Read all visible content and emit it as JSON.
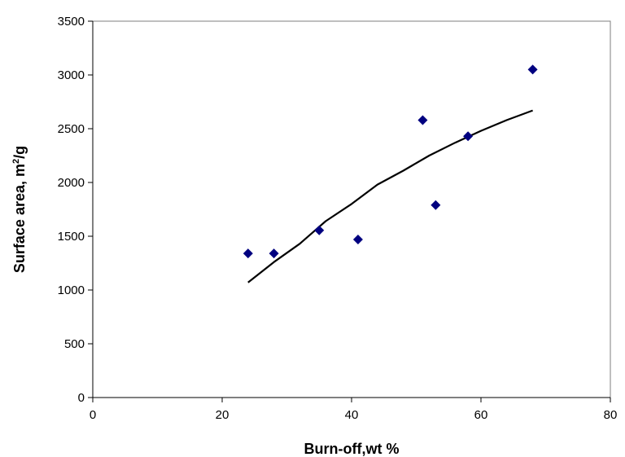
{
  "chart_data": {
    "type": "scatter",
    "xlabel": "Burn-off,wt %",
    "ylabel": {
      "main": "Surface area, m",
      "sup": "2",
      "tail": "/g"
    },
    "xlim": [
      0,
      80
    ],
    "ylim": [
      0,
      3500
    ],
    "x_ticks": [
      0,
      20,
      40,
      60,
      80
    ],
    "y_ticks": [
      0,
      500,
      1000,
      1500,
      2000,
      2500,
      3000,
      3500
    ],
    "grid": false,
    "legend": "none",
    "points": {
      "marker": "diamond",
      "color": "#000080",
      "x": [
        24,
        28,
        35,
        41,
        51,
        53,
        58,
        68
      ],
      "y": [
        1340,
        1340,
        1555,
        1470,
        2580,
        1790,
        2430,
        3050
      ]
    },
    "trendline": {
      "color": "#000000",
      "x": [
        24,
        28,
        32,
        36,
        40,
        44,
        48,
        52,
        56,
        60,
        64,
        68
      ],
      "y": [
        1070,
        1260,
        1430,
        1640,
        1800,
        1980,
        2110,
        2250,
        2370,
        2480,
        2580,
        2670
      ]
    }
  }
}
